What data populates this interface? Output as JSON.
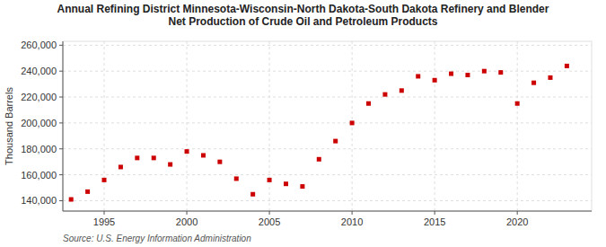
{
  "chart_data": {
    "type": "scatter",
    "title": "Annual Refining District Minnesota-Wisconsin-North Dakota-South Dakota Refinery and Blender\nNet Production of Crude Oil and Petroleum Products",
    "y_label": "Thousand Barrels",
    "annotations": [
      "Source: U.S. Energy Information Administration"
    ],
    "x": [
      1993,
      1994,
      1995,
      1996,
      1997,
      1998,
      1999,
      2000,
      2001,
      2002,
      2003,
      2004,
      2005,
      2006,
      2007,
      2008,
      2009,
      2010,
      2011,
      2012,
      2013,
      2014,
      2015,
      2016,
      2017,
      2018,
      2019,
      2020,
      2021,
      2022,
      2023
    ],
    "values": [
      141000,
      147000,
      156000,
      166000,
      173000,
      173000,
      168000,
      178000,
      175000,
      170000,
      157000,
      145000,
      156000,
      153000,
      151000,
      172000,
      186000,
      200000,
      215000,
      222000,
      225000,
      236000,
      233000,
      238000,
      237000,
      240000,
      239000,
      215000,
      231000,
      235000,
      244000
    ],
    "color": "#cc0000",
    "marker": "square",
    "xlim": [
      1992.5,
      2024.5
    ],
    "xticks": [
      1995,
      2000,
      2005,
      2010,
      2015,
      2020
    ],
    "ylim": [
      132000,
      263000
    ],
    "yticks": [
      {
        "value": 140000,
        "label": "140,000"
      },
      {
        "value": 160000,
        "label": "160,000"
      },
      {
        "value": 180000,
        "label": "180,000"
      },
      {
        "value": 200000,
        "label": "200,000"
      },
      {
        "value": 220000,
        "label": "220,000"
      },
      {
        "value": 240000,
        "label": "240,000"
      },
      {
        "value": 260000,
        "label": "260,000"
      }
    ],
    "grid": true
  }
}
